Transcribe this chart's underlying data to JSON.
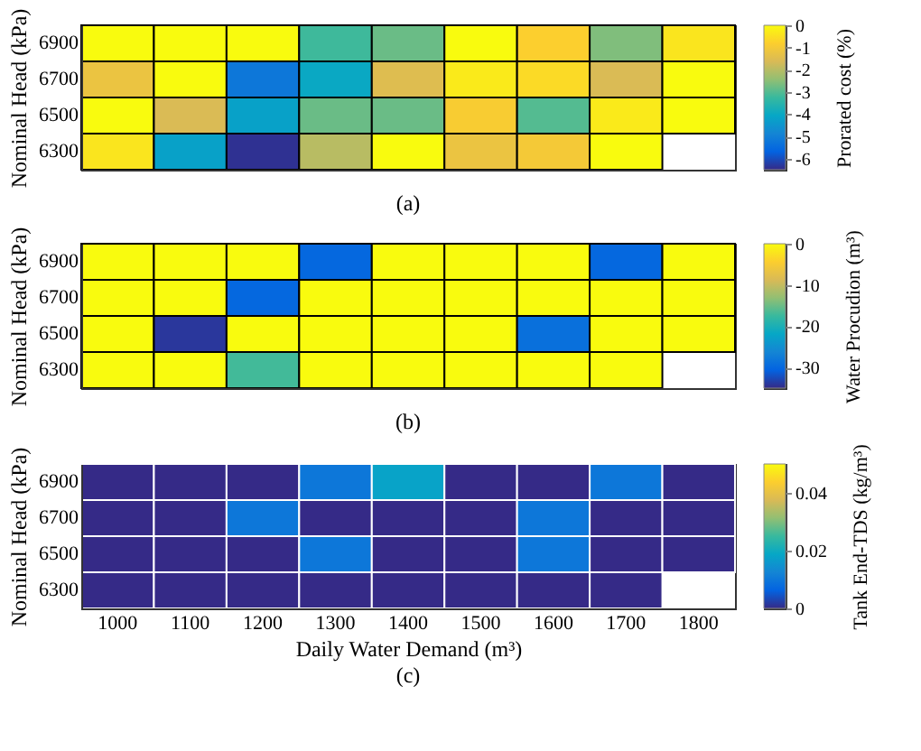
{
  "chart_data": [
    {
      "type": "heatmap",
      "ylabel": "Nominal Head (kPa)",
      "clabel": "Prorated cost (%)",
      "annotations": [
        "(a)"
      ],
      "tick_labels": "y",
      "categories": [
        "1000",
        "1100",
        "1200",
        "1300",
        "1400",
        "1500",
        "1600",
        "1700",
        "1800"
      ],
      "y_categories": [
        "6900",
        "6700",
        "6500",
        "6300"
      ],
      "cells": [
        [
          0,
          0,
          0,
          -3.2,
          -2.8,
          0,
          -0.8,
          -2.6,
          -0.4
        ],
        [
          -1.2,
          0,
          -5.2,
          -4,
          -1.5,
          -0.3,
          -0.6,
          -1.6,
          0
        ],
        [
          0,
          -1.6,
          -4.2,
          -2.8,
          -2.8,
          -0.9,
          -3,
          -0.3,
          0
        ],
        [
          -0.4,
          -4.2,
          -6.4,
          -2,
          0,
          -1.2,
          -1,
          0,
          null
        ]
      ],
      "clim": [
        -6.5,
        0
      ],
      "cticks": [
        -6,
        -5,
        -4,
        -3,
        -2,
        -1,
        0
      ]
    },
    {
      "type": "heatmap",
      "ylabel": "Nominal Head (kPa)",
      "clabel": "Water Procudion (m³)",
      "annotations": [
        "(b)"
      ],
      "tick_labels": "y",
      "categories": [
        "1000",
        "1100",
        "1200",
        "1300",
        "1400",
        "1500",
        "1600",
        "1700",
        "1800"
      ],
      "y_categories": [
        "6900",
        "6700",
        "6500",
        "6300"
      ],
      "cells": [
        [
          0,
          0,
          0,
          -30,
          0,
          0,
          0,
          -30,
          0
        ],
        [
          0,
          0,
          -30,
          0,
          0,
          0,
          0,
          0,
          0
        ],
        [
          0,
          -34,
          0,
          0,
          0,
          0,
          -29,
          0,
          0
        ],
        [
          0,
          0,
          -17,
          0,
          0,
          0,
          0,
          0,
          null
        ]
      ],
      "clim": [
        -35,
        0
      ],
      "cticks": [
        -30,
        -20,
        -10,
        0
      ]
    },
    {
      "type": "heatmap",
      "xlabel": "Daily Water Demand (m³)",
      "ylabel": "Nominal Head (kPa)",
      "clabel": "Tank End-TDS (kg/m³)",
      "annotations": [
        "(c)"
      ],
      "categories": [
        "1000",
        "1100",
        "1200",
        "1300",
        "1400",
        "1500",
        "1600",
        "1700",
        "1800"
      ],
      "y_categories": [
        "6900",
        "6700",
        "6500",
        "6300"
      ],
      "cells": [
        [
          0,
          0,
          0,
          0.01,
          0.018,
          0,
          0,
          0.01,
          0
        ],
        [
          0,
          0,
          0.01,
          0,
          0,
          0,
          0.01,
          0,
          0
        ],
        [
          0,
          0,
          0,
          0.01,
          0,
          0,
          0.01,
          0,
          0
        ],
        [
          0,
          0,
          0,
          0,
          0,
          0,
          0,
          0,
          null
        ]
      ],
      "clim": [
        0,
        0.05
      ],
      "cticks": [
        0,
        0.02,
        0.04
      ]
    }
  ]
}
